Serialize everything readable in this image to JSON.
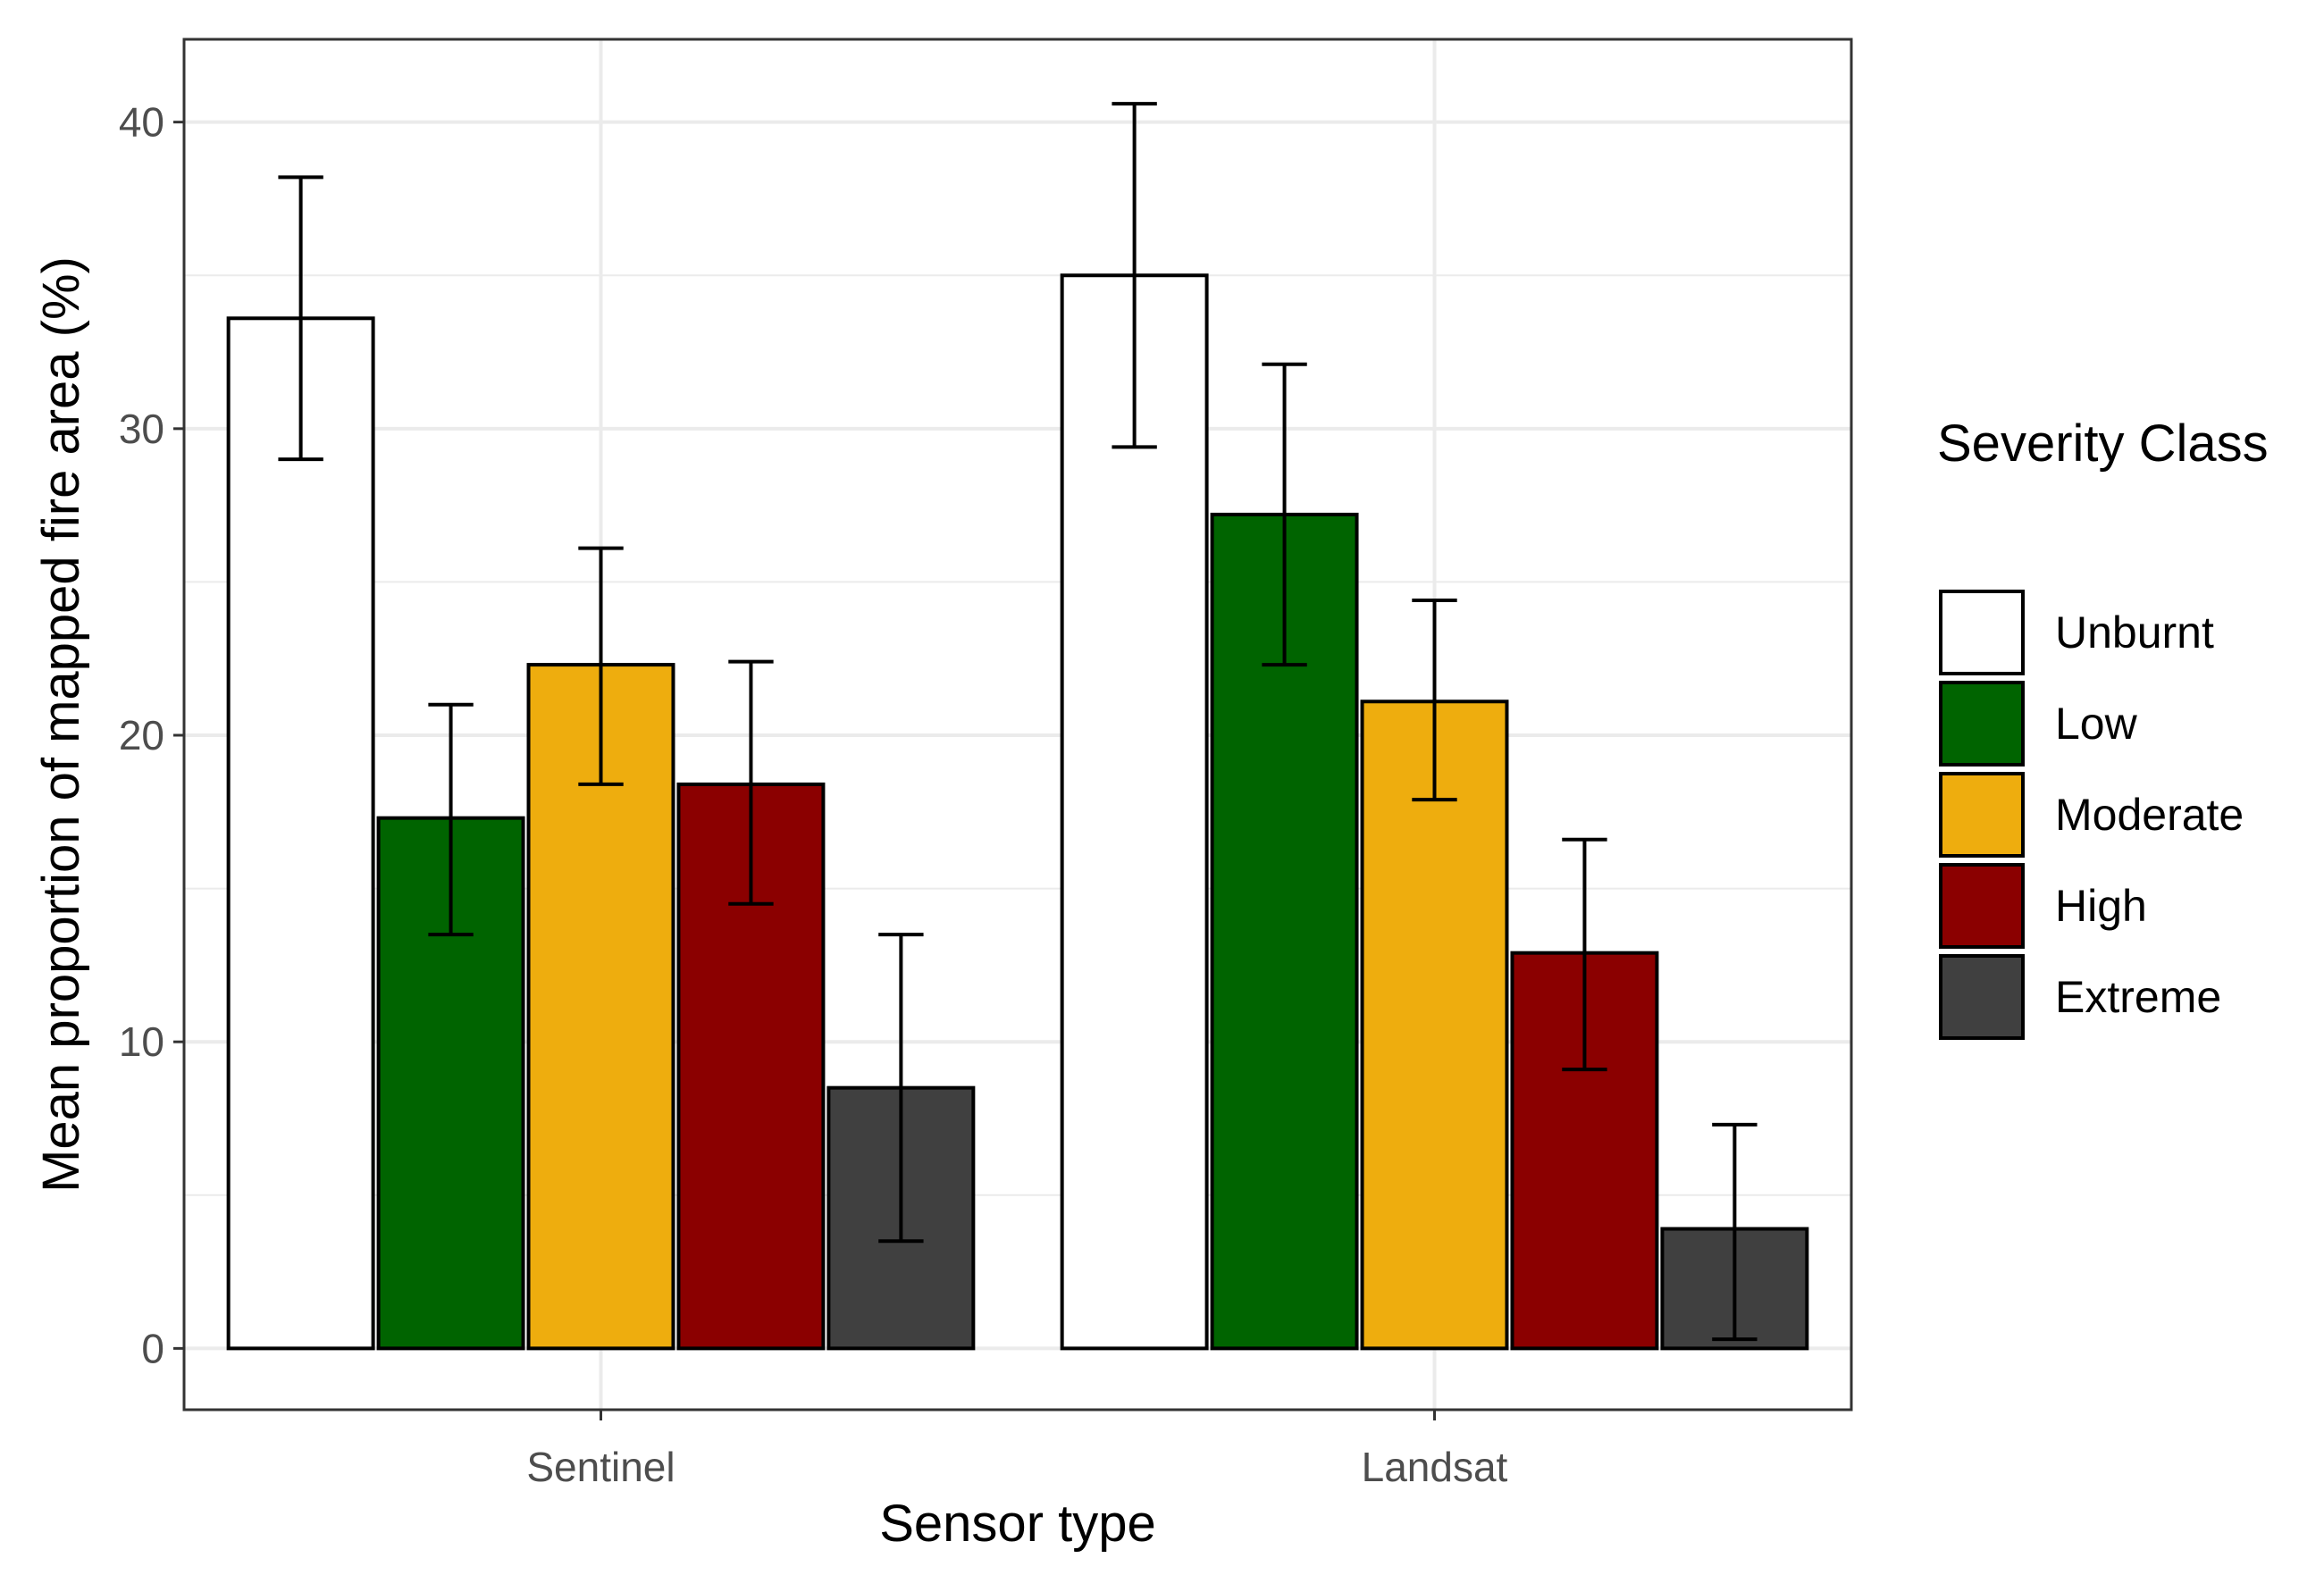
{
  "chart_data": {
    "type": "bar",
    "title": "",
    "xlabel": "Sensor type",
    "ylabel": "Mean proportion of mapped fire area (%)",
    "ylim": [
      -2,
      42.7
    ],
    "y_ticks": [
      0,
      10,
      20,
      30,
      40
    ],
    "grid": true,
    "legend_position": "right",
    "legend_title": "Severity Class",
    "categories": [
      "Sentinel",
      "Landsat"
    ],
    "series": [
      {
        "name": "Unburnt",
        "color": "#ffffff",
        "values": [
          33.6,
          35.0
        ],
        "error_low": [
          29.0,
          29.4
        ],
        "error_high": [
          38.2,
          40.6
        ]
      },
      {
        "name": "Low",
        "color": "#006400",
        "values": [
          17.3,
          27.2
        ],
        "error_low": [
          13.5,
          22.3
        ],
        "error_high": [
          21.0,
          32.1
        ]
      },
      {
        "name": "Moderate",
        "color": "#eead0e",
        "values": [
          22.3,
          21.1
        ],
        "error_low": [
          18.4,
          17.9
        ],
        "error_high": [
          26.1,
          24.4
        ]
      },
      {
        "name": "High",
        "color": "#8b0000",
        "values": [
          18.4,
          12.9
        ],
        "error_low": [
          14.5,
          9.1
        ],
        "error_high": [
          22.4,
          16.6
        ]
      },
      {
        "name": "Extreme",
        "color": "#404040",
        "values": [
          8.5,
          3.9
        ],
        "error_low": [
          3.5,
          0.3
        ],
        "error_high": [
          13.5,
          7.3
        ]
      }
    ]
  }
}
